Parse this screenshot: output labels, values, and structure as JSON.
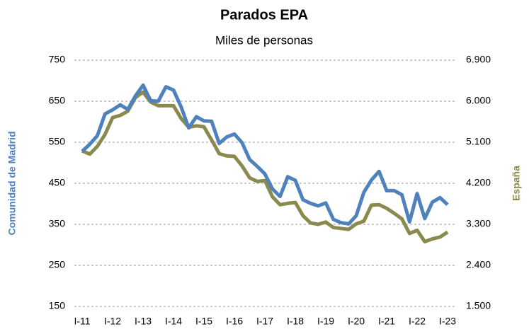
{
  "chart_data": {
    "type": "line",
    "title": "Parados EPA",
    "subtitle": "Miles de personas",
    "y_label": "Comunidad de Madrid",
    "y2_label": "España",
    "categories": [
      "I-11",
      null,
      null,
      null,
      "I-12",
      null,
      null,
      null,
      "I-13",
      null,
      null,
      null,
      "I-14",
      null,
      null,
      null,
      "I-15",
      null,
      null,
      null,
      "I-16",
      null,
      null,
      null,
      "I-17",
      null,
      null,
      null,
      "I-18",
      null,
      null,
      null,
      "I-19",
      null,
      null,
      null,
      "I-20",
      null,
      null,
      null,
      "I-21",
      null,
      null,
      null,
      "I-22",
      null,
      null,
      null,
      "I-23"
    ],
    "series": [
      {
        "name": "Comunidad de Madrid",
        "color": "#4f81bd",
        "values": [
          528,
          545,
          566,
          619,
          629,
          641,
          630,
          663,
          689,
          651,
          650,
          685,
          677,
          636,
          585,
          612,
          602,
          601,
          547,
          563,
          570,
          549,
          508,
          491,
          473,
          436,
          418,
          466,
          457,
          410,
          401,
          395,
          402,
          362,
          354,
          351,
          371,
          428,
          458,
          479,
          432,
          432,
          422,
          356,
          425,
          364,
          404,
          415,
          398
        ]
      },
      {
        "name": "España",
        "color": "#8b8a4e",
        "axis": "y2",
        "values": [
          4910,
          4840,
          5010,
          5270,
          5640,
          5690,
          5780,
          6080,
          6200,
          5980,
          5900,
          5900,
          5900,
          5620,
          5430,
          5460,
          5440,
          5150,
          4850,
          4800,
          4790,
          4580,
          4320,
          4240,
          4260,
          3900,
          3730,
          3760,
          3780,
          3490,
          3330,
          3300,
          3350,
          3230,
          3210,
          3190,
          3310,
          3370,
          3720,
          3730,
          3650,
          3540,
          3420,
          3100,
          3170,
          2920,
          2980,
          3020,
          3130
        ]
      }
    ],
    "ylim": [
      150,
      750
    ],
    "yticks": [
      150,
      250,
      350,
      450,
      550,
      650,
      750
    ],
    "y2lim": [
      1500,
      6900
    ],
    "y2ticks": [
      {
        "value": 1500,
        "label": "1.500"
      },
      {
        "value": 2400,
        "label": "2.400"
      },
      {
        "value": 3300,
        "label": "3.300"
      },
      {
        "value": 4200,
        "label": "4.200"
      },
      {
        "value": 5100,
        "label": "5.100"
      },
      {
        "value": 6000,
        "label": "6.000"
      },
      {
        "value": 6900,
        "label": "6.900"
      }
    ],
    "grid": true
  }
}
